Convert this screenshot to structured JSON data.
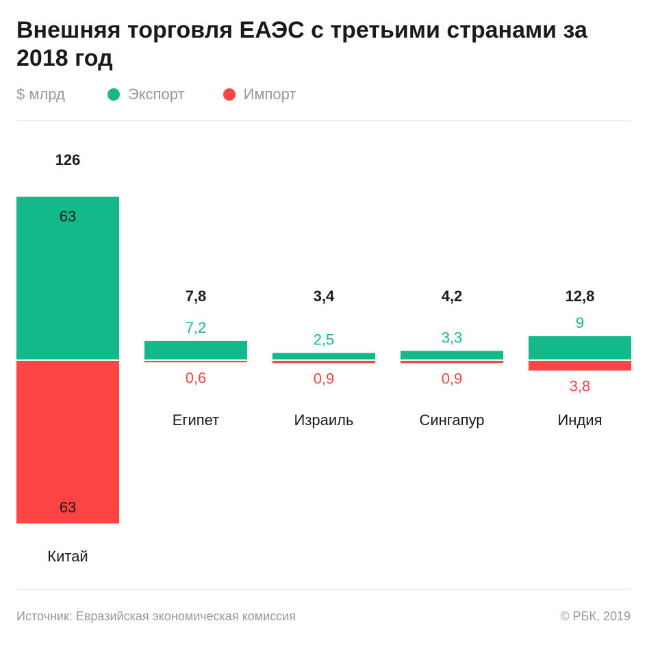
{
  "title": "Внешняя торговля ЕАЭС с третьими странами за 2018 год",
  "unit": "$ млрд",
  "colors": {
    "export": "#14b98a",
    "import": "#ff4444"
  },
  "chart_data": {
    "type": "bar",
    "stacked": "diverging",
    "categories": [
      "Китай",
      "Египет",
      "Израиль",
      "Сингапур",
      "Индия"
    ],
    "totals": [
      "126",
      "7,8",
      "3,4",
      "4,2",
      "12,8"
    ],
    "series": [
      {
        "name": "Экспорт",
        "values": [
          63,
          7.2,
          2.5,
          3.3,
          9
        ],
        "labels": [
          "63",
          "7,2",
          "2,5",
          "3,3",
          "9"
        ]
      },
      {
        "name": "Импорт",
        "values": [
          63,
          0.6,
          0.9,
          0.9,
          3.8
        ],
        "labels": [
          "63",
          "0,6",
          "0,9",
          "0,9",
          "3,8"
        ]
      }
    ],
    "legend": "top-left",
    "grid": false
  },
  "footer": {
    "source": "Источник: Евразийская экономическая комиссия",
    "copyright": "© РБК, 2019"
  }
}
